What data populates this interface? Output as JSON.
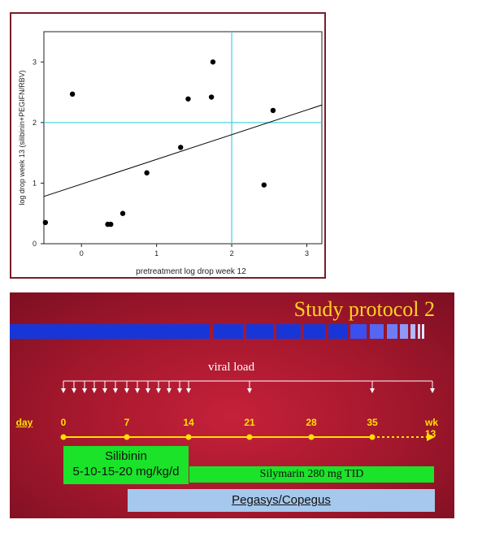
{
  "chart_data": {
    "type": "scatter",
    "xlabel": "pretreatment log drop week 12",
    "ylabel": "log drop week 13 (silibinin+PEGIFN/RBV)",
    "xlim": [
      -0.5,
      3.2
    ],
    "ylim": [
      0,
      3.5
    ],
    "xticks": [
      "0",
      "1",
      "2",
      "3"
    ],
    "yticks": [
      "0",
      "1",
      "2",
      "3"
    ],
    "points": [
      {
        "x": -0.48,
        "y": 0.35
      },
      {
        "x": -0.12,
        "y": 2.47
      },
      {
        "x": 0.35,
        "y": 0.32
      },
      {
        "x": 0.39,
        "y": 0.32
      },
      {
        "x": 0.55,
        "y": 0.5
      },
      {
        "x": 0.87,
        "y": 1.17
      },
      {
        "x": 1.32,
        "y": 1.59
      },
      {
        "x": 1.42,
        "y": 2.39
      },
      {
        "x": 1.73,
        "y": 2.42
      },
      {
        "x": 1.75,
        "y": 3.0
      },
      {
        "x": 2.43,
        "y": 0.97
      },
      {
        "x": 2.55,
        "y": 2.2
      }
    ],
    "regression_line": {
      "x": [
        -0.5,
        3.2
      ],
      "y": [
        0.78,
        2.29
      ]
    },
    "reference_lines": {
      "vertical_x": 2,
      "horizontal_y": 2
    },
    "colors": {
      "points": "#000000",
      "regression": "#000000",
      "reference": "#4fd4e0",
      "frame": "#7a1c2a"
    }
  },
  "protocol": {
    "title": "Study protocol 2",
    "viral_load_label": "viral load",
    "day_label": "day",
    "week_label": "wk 13",
    "days": [
      "0",
      "7",
      "14",
      "21",
      "28",
      "35"
    ],
    "silibinin_line1": "Silibinin",
    "silibinin_line2": "5-10-15-20 mg/kg/d",
    "silymarin_label": "Silymarin 280 mg TID",
    "pegasys_label": "Pegasys/Copegus",
    "colors": {
      "title": "#ffd21f",
      "timeline": "#ffe000",
      "drug_box": "#1be32a",
      "pegasys_box": "#a5c8ec",
      "blue_bar": "#1836d8"
    }
  }
}
